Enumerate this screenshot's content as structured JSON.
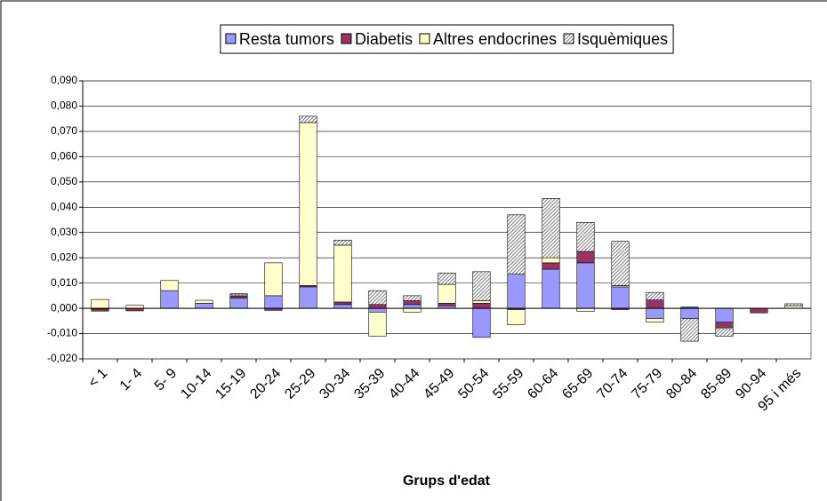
{
  "chart_data": {
    "type": "stacked_bar",
    "x_label": "Grups d'edat",
    "categories": [
      "< 1",
      "1- 4",
      "5- 9",
      "10-14",
      "15-19",
      "20-24",
      "25-29",
      "30-34",
      "35-39",
      "40-44",
      "45-49",
      "50-54",
      "55-59",
      "60-64",
      "65-69",
      "70-74",
      "75-79",
      "80-84",
      "85-89",
      "90-94",
      "95 i més"
    ],
    "series": [
      {
        "name": "Resta tumors",
        "color": "#9999ff",
        "values": [
          -0.0003,
          0,
          0.007,
          0.002,
          0.004,
          0.005,
          0.0085,
          0.0015,
          -0.0015,
          0.0015,
          0.001,
          -0.0115,
          0.0135,
          0.0155,
          0.018,
          0.0085,
          -0.004,
          -0.004,
          -0.0055,
          0,
          0
        ]
      },
      {
        "name": "Diabetis",
        "color": "#993366",
        "values": [
          -0.0008,
          -0.001,
          0,
          0,
          0.0008,
          -0.0008,
          0.0005,
          0.001,
          0.0015,
          0.0015,
          0.001,
          0.002,
          -0.0005,
          0.0025,
          0.0045,
          -0.0005,
          0.0033,
          0.0005,
          -0.002,
          -0.0018,
          0
        ]
      },
      {
        "name": "Altres endocrines",
        "color": "#ffffcc",
        "values": [
          0.0035,
          0.0012,
          0.004,
          0.0012,
          0.0005,
          0.013,
          0.0645,
          0.0225,
          -0.0095,
          -0.0015,
          0.0075,
          0.001,
          -0.006,
          0.002,
          -0.0012,
          0.0005,
          -0.0015,
          0,
          -0.0005,
          0,
          0.001
        ]
      },
      {
        "name": "Isquèmiques",
        "color": "#808080",
        "pattern": "hatch",
        "values": [
          0,
          0,
          0,
          0,
          0.0005,
          0,
          0.0025,
          0.002,
          0.0055,
          0.002,
          0.0045,
          0.0115,
          0.0235,
          0.0235,
          0.0115,
          0.0175,
          0.003,
          -0.009,
          -0.003,
          0,
          0.0008
        ]
      }
    ],
    "ylim": [
      -0.02,
      0.09
    ],
    "yticks": [
      {
        "value": -0.02,
        "label": "-0,020"
      },
      {
        "value": -0.01,
        "label": "-0,010"
      },
      {
        "value": 0,
        "label": "0,000"
      },
      {
        "value": 0.01,
        "label": "0,010"
      },
      {
        "value": 0.02,
        "label": "0,020"
      },
      {
        "value": 0.03,
        "label": "0,030"
      },
      {
        "value": 0.04,
        "label": "0,040"
      },
      {
        "value": 0.05,
        "label": "0,050"
      },
      {
        "value": 0.06,
        "label": "0,060"
      },
      {
        "value": 0.07,
        "label": "0,070"
      },
      {
        "value": 0.08,
        "label": "0,080"
      },
      {
        "value": 0.09,
        "label": "0,090"
      }
    ],
    "grid": true,
    "legend": "top"
  }
}
